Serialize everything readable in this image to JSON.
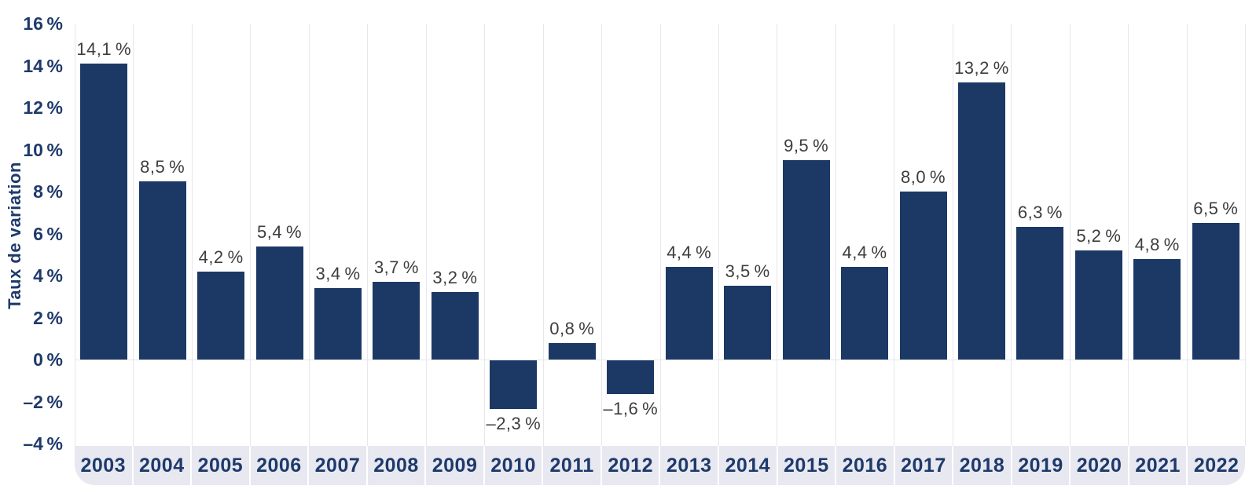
{
  "chart_data": {
    "type": "bar",
    "title": "",
    "xlabel": "",
    "ylabel": "Taux de variation",
    "categories": [
      "2003",
      "2004",
      "2005",
      "2006",
      "2007",
      "2008",
      "2009",
      "2010",
      "2011",
      "2012",
      "2013",
      "2014",
      "2015",
      "2016",
      "2017",
      "2018",
      "2019",
      "2020",
      "2021",
      "2022"
    ],
    "values": [
      14.1,
      8.5,
      4.2,
      5.4,
      3.4,
      3.7,
      3.2,
      -2.3,
      0.8,
      -1.6,
      4.4,
      3.5,
      9.5,
      4.4,
      8.0,
      13.2,
      6.3,
      5.2,
      4.8,
      6.5
    ],
    "value_labels": [
      "14,1 %",
      "8,5 %",
      "4,2 %",
      "5,4 %",
      "3,4 %",
      "3,7 %",
      "3,2 %",
      "–2,3 %",
      "0,8 %",
      "–1,6 %",
      "4,4 %",
      "3,5 %",
      "9,5 %",
      "4,4 %",
      "8,0 %",
      "13,2 %",
      "6,3 %",
      "5,2 %",
      "4,8 %",
      "6,5 %"
    ],
    "y_axis": {
      "tick_values": [
        16,
        14,
        12,
        10,
        8,
        6,
        4,
        2,
        0,
        -2,
        -4
      ],
      "tick_labels": [
        "16 %",
        "14 %",
        "12 %",
        "10 %",
        "8 %",
        "6 %",
        "4 %",
        "2 %",
        "0 %",
        "–2 %",
        "–4 %"
      ]
    },
    "ylim": [
      -4,
      16
    ],
    "grid": "vertical-only",
    "legend": "none",
    "colors": {
      "bar": "#1c3966",
      "axis_text": "#1e3a6b",
      "value_label": "#3d3d3d",
      "gridline": "#e7e7ed",
      "band_background": "#e8e8f1",
      "band_separator": "#ffffff",
      "background": "#ffffff"
    }
  }
}
